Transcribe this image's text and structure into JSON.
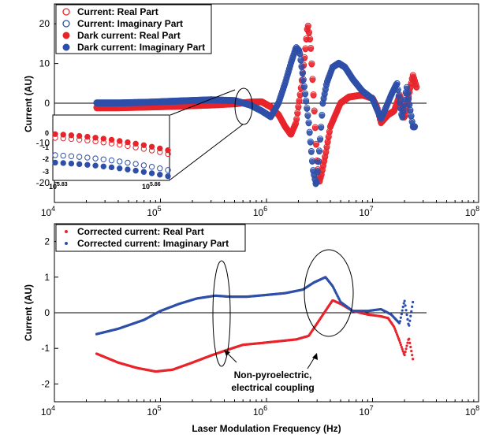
{
  "chart_data": [
    {
      "type": "scatter",
      "xscale": "log",
      "xlim": [
        10000,
        100000000
      ],
      "ylim": [
        -25,
        25
      ],
      "ylabel": "Current (AU)",
      "xticks": [
        {
          "base": "10",
          "exp": "4"
        },
        {
          "base": "10",
          "exp": "5"
        },
        {
          "base": "10",
          "exp": "6"
        },
        {
          "base": "10",
          "exp": "7"
        },
        {
          "base": "10",
          "exp": "8"
        }
      ],
      "yticks": [
        "-20",
        "-10",
        "0",
        "10",
        "20"
      ],
      "legend_position": "top-left",
      "legend": [
        {
          "label": "Current: Real Part",
          "color": "#e8242b",
          "marker": "open-circle"
        },
        {
          "label": "Current: Imaginary Part",
          "color": "#2e4fa8",
          "marker": "open-circle"
        },
        {
          "label": "Dark current: Real Part",
          "color": "#e8242b",
          "marker": "filled-circle"
        },
        {
          "label": "Dark current: Imaginary Part",
          "color": "#2e4fa8",
          "marker": "filled-circle"
        }
      ],
      "series": [
        {
          "name": "Dark current: Real Part",
          "color": "#e8242b",
          "points": [
            [
              25000,
              -1.2
            ],
            [
              40000,
              -1.2
            ],
            [
              80000,
              -1
            ],
            [
              150000,
              -0.8
            ],
            [
              300000,
              -0.5
            ],
            [
              500000,
              -0.2
            ],
            [
              700000,
              0.2
            ],
            [
              900000,
              0.3
            ],
            [
              1100000,
              -1
            ],
            [
              1300000,
              -3
            ],
            [
              1500000,
              -6
            ],
            [
              1700000,
              -8
            ],
            [
              1900000,
              -5
            ],
            [
              2100000,
              3
            ],
            [
              2300000,
              12
            ],
            [
              2450000,
              20
            ],
            [
              2600000,
              15
            ],
            [
              2800000,
              0
            ],
            [
              3000000,
              -15
            ],
            [
              3150000,
              -20
            ],
            [
              3300000,
              -18
            ],
            [
              3600000,
              -13
            ],
            [
              4000000,
              -6
            ],
            [
              5000000,
              0
            ],
            [
              6000000,
              1.5
            ],
            [
              8000000,
              2
            ],
            [
              10000000,
              1.2
            ],
            [
              11000000,
              -1
            ],
            [
              12000000,
              -5
            ],
            [
              14000000,
              -3
            ],
            [
              16000000,
              -2
            ],
            [
              18000000,
              2
            ],
            [
              20000000,
              -4
            ],
            [
              22000000,
              2
            ],
            [
              24000000,
              7
            ],
            [
              26000000,
              4
            ]
          ]
        },
        {
          "name": "Dark current: Imaginary Part",
          "color": "#2e4fa8",
          "points": [
            [
              25000,
              0
            ],
            [
              40000,
              0
            ],
            [
              80000,
              0.2
            ],
            [
              150000,
              0.5
            ],
            [
              300000,
              0.8
            ],
            [
              500000,
              0.6
            ],
            [
              700000,
              -0.5
            ],
            [
              900000,
              -2
            ],
            [
              1100000,
              -3.5
            ],
            [
              1300000,
              0
            ],
            [
              1500000,
              5
            ],
            [
              1700000,
              10
            ],
            [
              1900000,
              14
            ],
            [
              2050000,
              13
            ],
            [
              2250000,
              5
            ],
            [
              2500000,
              -5
            ],
            [
              2750000,
              -17
            ],
            [
              2950000,
              -21
            ],
            [
              3150000,
              -12
            ],
            [
              3400000,
              0
            ],
            [
              3700000,
              5
            ],
            [
              4200000,
              9
            ],
            [
              4800000,
              10
            ],
            [
              5500000,
              9
            ],
            [
              6500000,
              6
            ],
            [
              8000000,
              3
            ],
            [
              10000000,
              1
            ],
            [
              12000000,
              -4
            ],
            [
              13000000,
              -2
            ],
            [
              15000000,
              2
            ],
            [
              17000000,
              5
            ],
            [
              19000000,
              -4
            ],
            [
              21000000,
              4
            ],
            [
              24000000,
              -6
            ],
            [
              25000000,
              -6
            ]
          ]
        }
      ],
      "inset": {
        "xlabels": [
          {
            "base": "10",
            "exp": "5.83"
          },
          {
            "base": "10",
            "exp": "5.86"
          }
        ],
        "yticks": [
          "0",
          "-1",
          "-2",
          "-3"
        ]
      }
    },
    {
      "type": "scatter",
      "xscale": "log",
      "xlim": [
        10000,
        100000000
      ],
      "ylim": [
        -2.5,
        2.5
      ],
      "ylabel": "Current (AU)",
      "xlabel": "Laser Modulation Frequency (Hz)",
      "xticks": [
        {
          "base": "10",
          "exp": "4"
        },
        {
          "base": "10",
          "exp": "5"
        },
        {
          "base": "10",
          "exp": "6"
        },
        {
          "base": "10",
          "exp": "7"
        },
        {
          "base": "10",
          "exp": "8"
        }
      ],
      "yticks": [
        "-2",
        "-1",
        "0",
        "1",
        "2"
      ],
      "legend_position": "top-left",
      "legend": [
        {
          "label": "Corrected current: Real Part",
          "color": "#e8242b",
          "marker": "dot"
        },
        {
          "label": "Corrected current: Imaginary Part",
          "color": "#2e4fa8",
          "marker": "dot"
        }
      ],
      "series": [
        {
          "name": "Corrected current: Real Part",
          "color": "#e8242b",
          "points": [
            [
              25000,
              -1.15
            ],
            [
              40000,
              -1.4
            ],
            [
              60000,
              -1.55
            ],
            [
              90000,
              -1.65
            ],
            [
              130000,
              -1.6
            ],
            [
              200000,
              -1.4
            ],
            [
              300000,
              -1.2
            ],
            [
              420000,
              -1.05
            ],
            [
              600000,
              -0.9
            ],
            [
              900000,
              -0.85
            ],
            [
              1300000,
              -0.8
            ],
            [
              1900000,
              -0.75
            ],
            [
              2500000,
              -0.65
            ],
            [
              3000000,
              -0.3
            ],
            [
              3500000,
              0
            ],
            [
              4200000,
              0.35
            ],
            [
              5000000,
              0.25
            ],
            [
              6500000,
              0.05
            ],
            [
              9000000,
              -0.05
            ],
            [
              12000000,
              -0.1
            ],
            [
              14000000,
              -0.15
            ],
            [
              16000000,
              -0.4
            ],
            [
              18000000,
              -0.8
            ],
            [
              20000000,
              -1.2
            ],
            [
              22000000,
              -0.7
            ],
            [
              24000000,
              -1.3
            ]
          ]
        },
        {
          "name": "Corrected current: Imaginary Part",
          "color": "#2e4fa8",
          "points": [
            [
              25000,
              -0.6
            ],
            [
              40000,
              -0.45
            ],
            [
              70000,
              -0.2
            ],
            [
              100000,
              0.05
            ],
            [
              150000,
              0.25
            ],
            [
              220000,
              0.4
            ],
            [
              330000,
              0.48
            ],
            [
              450000,
              0.45
            ],
            [
              650000,
              0.45
            ],
            [
              1000000,
              0.5
            ],
            [
              1500000,
              0.55
            ],
            [
              2200000,
              0.65
            ],
            [
              2800000,
              0.85
            ],
            [
              3600000,
              1.0
            ],
            [
              4200000,
              0.75
            ],
            [
              5000000,
              0.3
            ],
            [
              6500000,
              0.05
            ],
            [
              9000000,
              0.05
            ],
            [
              12000000,
              0.1
            ],
            [
              15000000,
              -0.05
            ],
            [
              18000000,
              -0.3
            ],
            [
              20000000,
              0.35
            ],
            [
              22000000,
              -0.4
            ],
            [
              24000000,
              0.3
            ]
          ]
        }
      ],
      "annotation": {
        "lines": [
          "Non-pyroelectric,",
          "electrical coupling"
        ]
      }
    }
  ]
}
